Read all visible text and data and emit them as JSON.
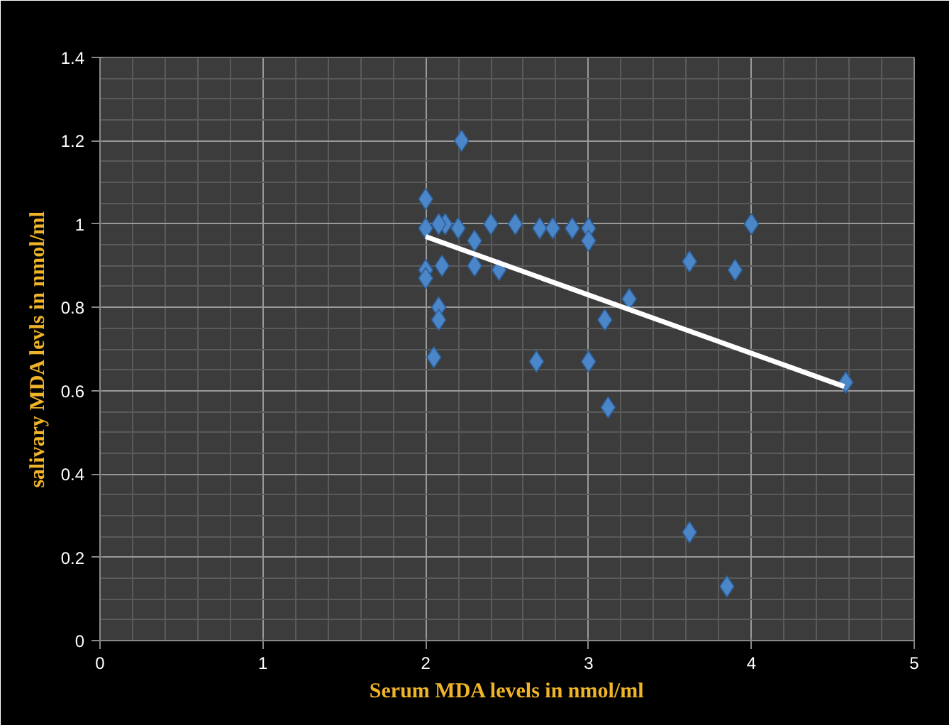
{
  "chart_data": {
    "type": "scatter",
    "xlabel": "Serum MDA levels in nmol/ml",
    "ylabel": "salivary MDA levls in nmol/ml",
    "xlim": [
      0,
      5
    ],
    "ylim": [
      0,
      1.4
    ],
    "xticks": [
      0,
      1,
      2,
      3,
      4,
      5
    ],
    "yticks": [
      0,
      0.2,
      0.4,
      0.6,
      0.8,
      1,
      1.2,
      1.4
    ],
    "grid": true,
    "series": [
      {
        "color": "#4a86c8",
        "marker": "diamond",
        "x": [
          2.0,
          2.0,
          2.0,
          2.0,
          2.22,
          2.05,
          2.08,
          2.08,
          2.1,
          2.12,
          2.08,
          2.2,
          2.3,
          2.3,
          2.4,
          2.45,
          2.55,
          2.68,
          2.7,
          2.78,
          2.9,
          3.0,
          3.0,
          3.0,
          3.1,
          3.12,
          3.25,
          3.62,
          3.62,
          3.9,
          3.85,
          4.0,
          4.58
        ],
        "values": [
          1.06,
          0.99,
          0.89,
          0.87,
          1.2,
          0.68,
          0.8,
          0.77,
          0.9,
          1.0,
          1.0,
          0.99,
          0.96,
          0.9,
          1.0,
          0.89,
          1.0,
          0.67,
          0.99,
          0.99,
          0.99,
          0.99,
          0.96,
          0.67,
          0.77,
          0.56,
          0.82,
          0.91,
          0.26,
          0.89,
          0.13,
          1.0,
          0.62
        ]
      },
      {
        "type": "line",
        "color": "#ffffff",
        "x": [
          2.0,
          4.57
        ],
        "values": [
          0.97,
          0.61
        ]
      }
    ]
  }
}
